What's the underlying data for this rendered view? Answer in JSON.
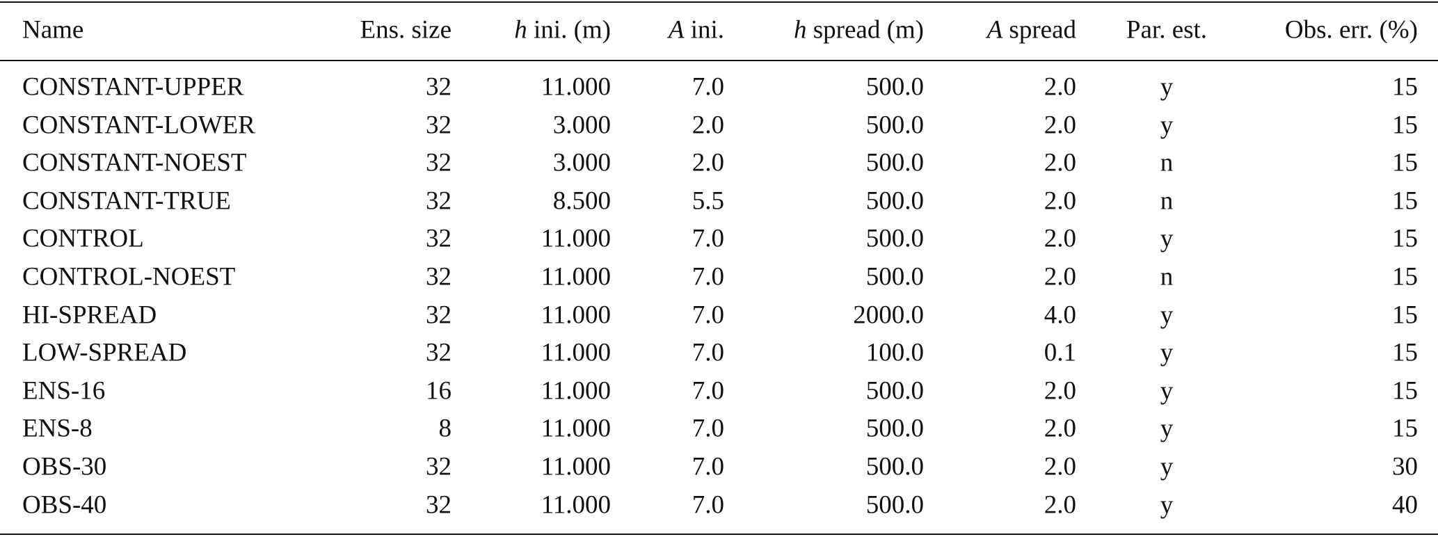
{
  "table": {
    "header": [
      "Name",
      "Ens. size",
      {
        "italic": "h",
        "text": " ini. (m)"
      },
      {
        "italic": "A",
        "text": " ini."
      },
      {
        "italic": "h",
        "text": " spread (m)"
      },
      {
        "italic": "A",
        "text": " spread"
      },
      "Par. est.",
      "Obs. err. (%)"
    ],
    "rows": [
      [
        "CONSTANT-UPPER",
        "32",
        "11.000",
        "7.0",
        "500.0",
        "2.0",
        "y",
        "15"
      ],
      [
        "CONSTANT-LOWER",
        "32",
        "3.000",
        "2.0",
        "500.0",
        "2.0",
        "y",
        "15"
      ],
      [
        "CONSTANT-NOEST",
        "32",
        "3.000",
        "2.0",
        "500.0",
        "2.0",
        "n",
        "15"
      ],
      [
        "CONSTANT-TRUE",
        "32",
        "8.500",
        "5.5",
        "500.0",
        "2.0",
        "n",
        "15"
      ],
      [
        "CONTROL",
        "32",
        "11.000",
        "7.0",
        "500.0",
        "2.0",
        "y",
        "15"
      ],
      [
        "CONTROL-NOEST",
        "32",
        "11.000",
        "7.0",
        "500.0",
        "2.0",
        "n",
        "15"
      ],
      [
        "HI-SPREAD",
        "32",
        "11.000",
        "7.0",
        "2000.0",
        "4.0",
        "y",
        "15"
      ],
      [
        "LOW-SPREAD",
        "32",
        "11.000",
        "7.0",
        "100.0",
        "0.1",
        "y",
        "15"
      ],
      [
        "ENS-16",
        "16",
        "11.000",
        "7.0",
        "500.0",
        "2.0",
        "y",
        "15"
      ],
      [
        "ENS-8",
        "8",
        "11.000",
        "7.0",
        "500.0",
        "2.0",
        "y",
        "15"
      ],
      [
        "OBS-30",
        "32",
        "11.000",
        "7.0",
        "500.0",
        "2.0",
        "y",
        "30"
      ],
      [
        "OBS-40",
        "32",
        "11.000",
        "7.0",
        "500.0",
        "2.0",
        "y",
        "40"
      ]
    ]
  }
}
